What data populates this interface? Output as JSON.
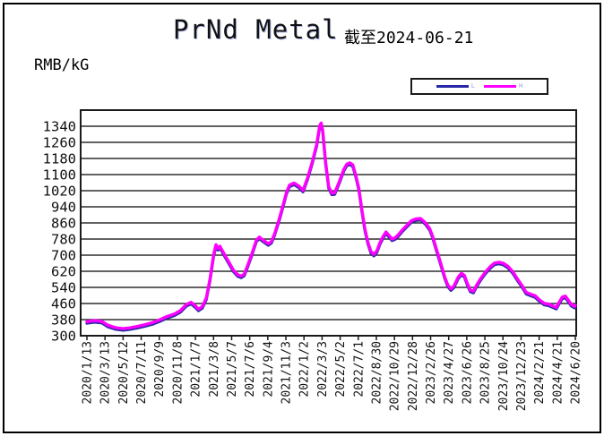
{
  "title": "PrNd Metal",
  "subtitle": "截至2024-06-21",
  "unit_label": "RMB/kG",
  "colors": {
    "series_low": "#2929a8",
    "series_high": "#ff00ff",
    "gridline": "#2e2e2e",
    "frame": "#1a1a1a",
    "axis_text": "#111111",
    "background": "#ffffff",
    "legend_label": "#99a0e8"
  },
  "legend": {
    "series": [
      {
        "label": "L",
        "color": "#2929a8"
      },
      {
        "label": "H",
        "color": "#ff00ff"
      }
    ]
  },
  "chart_data": {
    "type": "line",
    "title": "PrNd Metal",
    "subtitle": "截至2024-06-21",
    "ylabel": "RMB/kG",
    "xlabel": "",
    "grid": "horizontal",
    "legend_position": "top-right",
    "ylim": [
      300,
      1420
    ],
    "ytick_step": 80,
    "yticks": [
      300,
      380,
      460,
      540,
      620,
      700,
      780,
      860,
      940,
      1020,
      1100,
      1180,
      1260,
      1340
    ],
    "xtick_labels": [
      "2020/1/13",
      "2020/3/13",
      "2020/5/12",
      "2020/7/11",
      "2020/9/9",
      "2020/11/8",
      "2021/1/7",
      "2021/3/8",
      "2021/5/7",
      "2021/7/6",
      "2021/9/4",
      "2021/11/3",
      "2022/1/2",
      "2022/3/3",
      "2022/5/2",
      "2022/7/1",
      "2022/8/30",
      "2022/10/29",
      "2022/12/28",
      "2023/2/26",
      "2023/4/27",
      "2023/6/26",
      "2023/8/25",
      "2023/10/24",
      "2023/12/23",
      "2024/2/21",
      "2024/4/21",
      "2024/6/20"
    ],
    "x_dates": [
      "2020/1/13",
      "2020/2/7",
      "2020/3/3",
      "2020/3/23",
      "2020/4/17",
      "2020/5/12",
      "2020/6/6",
      "2020/7/1",
      "2020/7/26",
      "2020/8/20",
      "2020/9/9",
      "2020/10/4",
      "2020/10/29",
      "2020/11/18",
      "2020/12/8",
      "2020/12/23",
      "2021/1/7",
      "2021/1/17",
      "2021/1/30",
      "2021/2/12",
      "2021/2/24",
      "2021/3/8",
      "2021/3/16",
      "2021/3/23",
      "2021/3/29",
      "2021/4/12",
      "2021/4/27",
      "2021/5/12",
      "2021/5/27",
      "2021/6/8",
      "2021/6/18",
      "2021/6/28",
      "2021/7/13",
      "2021/7/28",
      "2021/8/7",
      "2021/8/22",
      "2021/9/6",
      "2021/9/16",
      "2021/9/26",
      "2021/10/11",
      "2021/10/26",
      "2021/11/5",
      "2021/11/15",
      "2021/11/30",
      "2021/12/15",
      "2021/12/30",
      "2022/1/14",
      "2022/1/29",
      "2022/2/13",
      "2022/2/23",
      "2022/2/28",
      "2022/3/5",
      "2022/3/15",
      "2022/3/25",
      "2022/4/4",
      "2022/4/14",
      "2022/4/29",
      "2022/5/14",
      "2022/5/24",
      "2022/6/3",
      "2022/6/13",
      "2022/6/23",
      "2022/7/3",
      "2022/7/13",
      "2022/7/23",
      "2022/8/2",
      "2022/8/12",
      "2022/8/22",
      "2022/9/1",
      "2022/9/11",
      "2022/9/21",
      "2022/10/1",
      "2022/10/11",
      "2022/10/21",
      "2022/10/31",
      "2022/11/10",
      "2022/11/25",
      "2022/12/10",
      "2022/12/25",
      "2023/1/9",
      "2023/1/24",
      "2023/2/8",
      "2023/2/23",
      "2023/3/5",
      "2023/3/15",
      "2023/3/25",
      "2023/4/4",
      "2023/4/14",
      "2023/4/24",
      "2023/5/4",
      "2023/5/14",
      "2023/5/29",
      "2023/6/8",
      "2023/6/18",
      "2023/6/28",
      "2023/7/8",
      "2023/7/18",
      "2023/7/28",
      "2023/8/12",
      "2023/8/27",
      "2023/9/11",
      "2023/9/26",
      "2023/10/11",
      "2023/10/26",
      "2023/11/10",
      "2023/11/25",
      "2023/12/10",
      "2023/12/25",
      "2024/1/9",
      "2024/1/24",
      "2024/2/8",
      "2024/2/23",
      "2024/3/9",
      "2024/3/24",
      "2024/4/8",
      "2024/4/18",
      "2024/4/28",
      "2024/5/8",
      "2024/5/18",
      "2024/5/28",
      "2024/6/7",
      "2024/6/17",
      "2024/6/20"
    ],
    "series": [
      {
        "name": "L",
        "color": "#2929a8",
        "values": [
          362,
          367,
          363,
          344,
          332,
          327,
          332,
          339,
          348,
          358,
          370,
          387,
          400,
          417,
          447,
          458,
          440,
          424,
          437,
          479,
          572,
          692,
          744,
          725,
          736,
          698,
          660,
          620,
          595,
          588,
          598,
          637,
          698,
          767,
          782,
          764,
          749,
          760,
          797,
          867,
          947,
          1004,
          1040,
          1050,
          1036,
          1014,
          1077,
          1152,
          1242,
          1334,
          1348,
          1312,
          1152,
          1032,
          1000,
          1002,
          1057,
          1117,
          1144,
          1150,
          1140,
          1087,
          1022,
          917,
          822,
          757,
          710,
          696,
          714,
          754,
          784,
          807,
          790,
          772,
          778,
          792,
          818,
          842,
          864,
          872,
          874,
          854,
          824,
          784,
          734,
          684,
          634,
          584,
          544,
          525,
          538,
          584,
          602,
          592,
          550,
          518,
          513,
          542,
          578,
          608,
          634,
          653,
          657,
          651,
          636,
          611,
          576,
          544,
          507,
          498,
          490,
          469,
          453,
          449,
          439,
          433,
          460,
          484,
          489,
          468,
          447,
          438,
          444
        ]
      },
      {
        "name": "H",
        "color": "#ff00ff",
        "values": [
          370,
          375,
          371,
          352,
          340,
          335,
          340,
          347,
          356,
          366,
          378,
          395,
          408,
          425,
          455,
          466,
          448,
          432,
          445,
          487,
          580,
          700,
          752,
          733,
          744,
          706,
          668,
          628,
          603,
          596,
          606,
          645,
          706,
          775,
          790,
          772,
          757,
          768,
          805,
          875,
          955,
          1012,
          1048,
          1058,
          1044,
          1022,
          1085,
          1160,
          1250,
          1342,
          1356,
          1320,
          1160,
          1040,
          1008,
          1010,
          1065,
          1125,
          1152,
          1158,
          1148,
          1095,
          1030,
          925,
          830,
          765,
          718,
          704,
          722,
          762,
          792,
          815,
          798,
          780,
          786,
          800,
          826,
          850,
          872,
          880,
          882,
          862,
          832,
          792,
          742,
          692,
          642,
          592,
          552,
          533,
          546,
          592,
          610,
          600,
          558,
          526,
          521,
          550,
          586,
          616,
          642,
          661,
          665,
          659,
          644,
          619,
          584,
          552,
          515,
          506,
          498,
          477,
          461,
          457,
          447,
          441,
          468,
          492,
          497,
          476,
          455,
          446,
          452
        ]
      }
    ]
  }
}
